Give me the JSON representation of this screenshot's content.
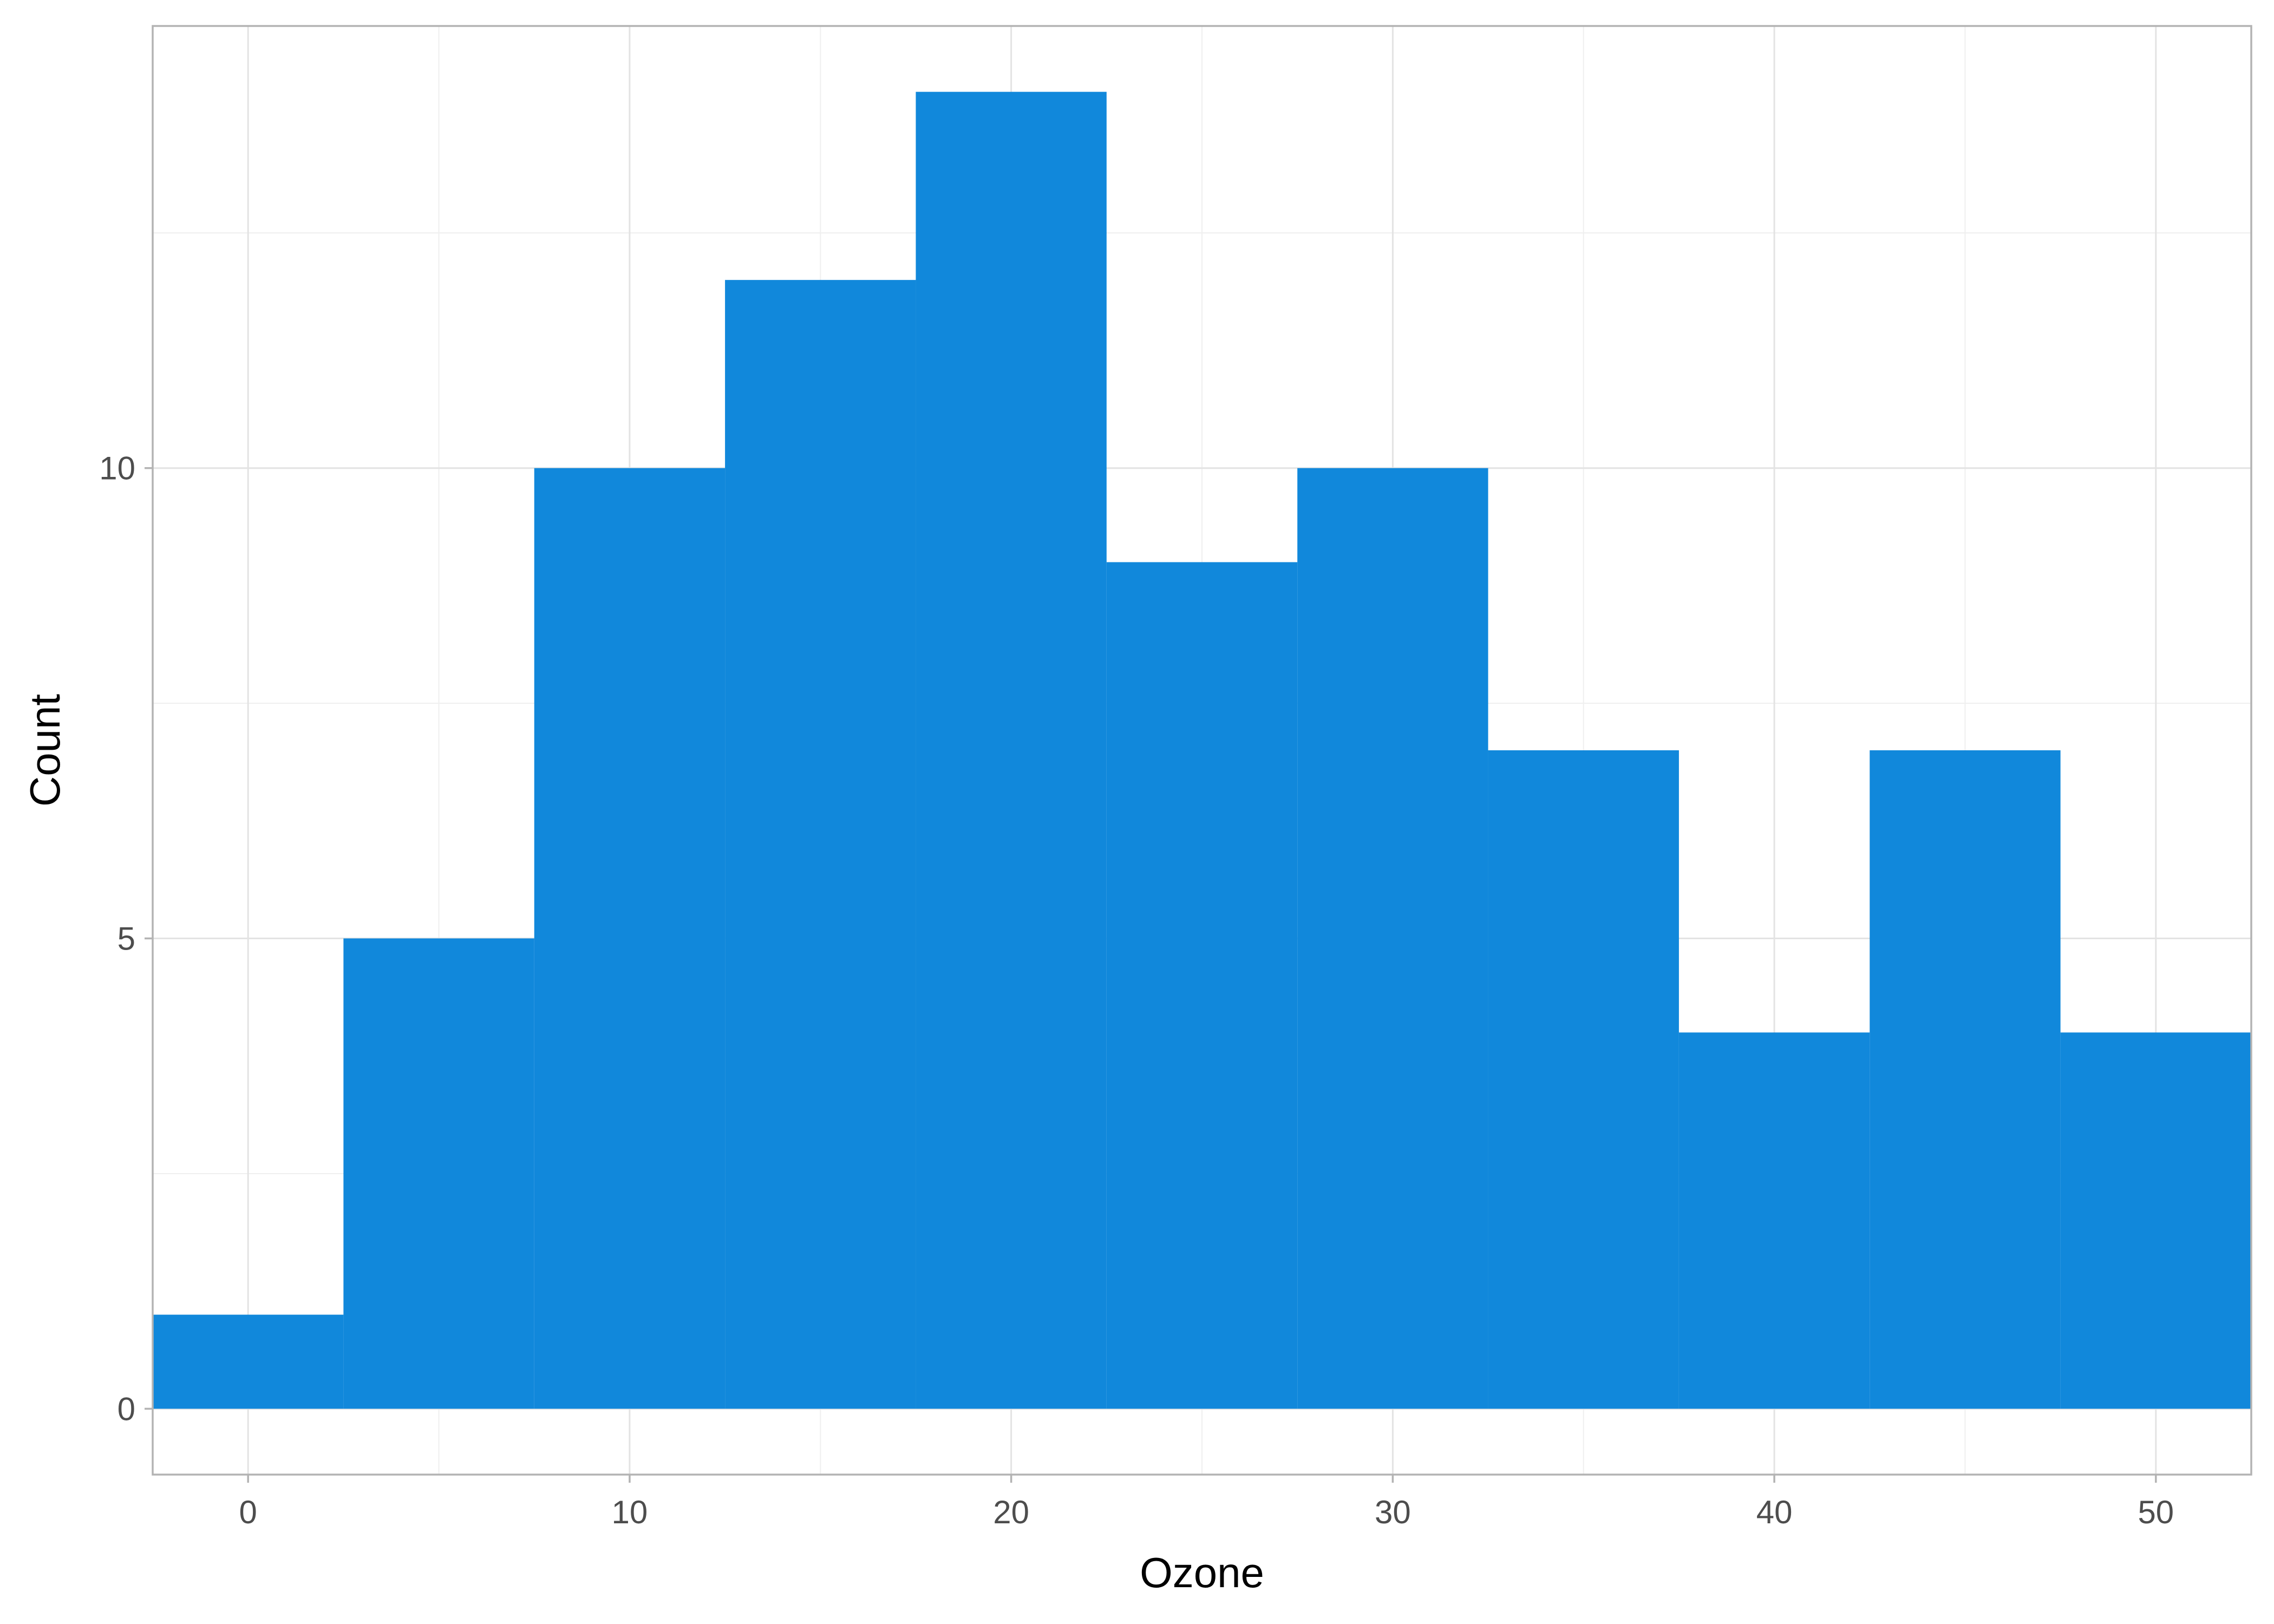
{
  "chart_data": {
    "type": "bar",
    "subtype": "histogram",
    "xlabel": "Ozone",
    "ylabel": "Count",
    "bin_width": 5,
    "bins": [
      {
        "start": -2.5,
        "end": 2.5,
        "count": 1
      },
      {
        "start": 2.5,
        "end": 7.5,
        "count": 5
      },
      {
        "start": 7.5,
        "end": 12.5,
        "count": 10
      },
      {
        "start": 12.5,
        "end": 17.5,
        "count": 12
      },
      {
        "start": 17.5,
        "end": 22.5,
        "count": 14
      },
      {
        "start": 22.5,
        "end": 27.5,
        "count": 9
      },
      {
        "start": 27.5,
        "end": 32.5,
        "count": 10
      },
      {
        "start": 32.5,
        "end": 37.5,
        "count": 7
      },
      {
        "start": 37.5,
        "end": 42.5,
        "count": 4
      },
      {
        "start": 42.5,
        "end": 47.5,
        "count": 7
      },
      {
        "start": 47.5,
        "end": 52.5,
        "count": 4
      }
    ],
    "x_ticks": [
      0,
      10,
      20,
      30,
      40,
      50
    ],
    "y_ticks": [
      0,
      5,
      10
    ],
    "xlim": [
      -2.5,
      52.5
    ],
    "ylim": [
      -0.7,
      14.7
    ],
    "grid": true,
    "legend": "none",
    "colors": {
      "bar": "#1188db",
      "grid": "#e3e3e3",
      "border": "#b3b3b3",
      "tick_text": "#4d4d4d"
    }
  }
}
